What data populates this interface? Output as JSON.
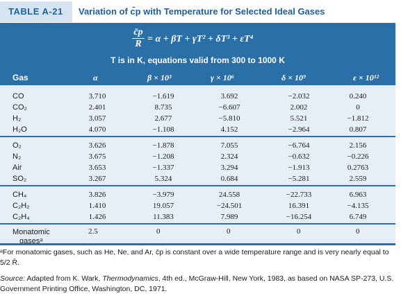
{
  "title": {
    "tag": "TABLE A-21",
    "text": "Variation of c̄p with Temperature for Selected Ideal Gases"
  },
  "header": {
    "equation_lhs_num": "c̄p",
    "equation_lhs_den": "R",
    "equation_rhs": "= α + βT + γT² + δT³ + εT⁴",
    "subtitle": "T is in K, equations valid from 300 to 1000 K",
    "columns": [
      "Gas",
      "α",
      "β × 10³",
      "γ × 10⁶",
      "δ × 10⁹",
      "ε × 10¹²"
    ]
  },
  "groups": [
    {
      "rows": [
        {
          "gas": "CO",
          "a": "3.710",
          "b": "−1.619",
          "g": "3.692",
          "d": "−2.032",
          "e": "0.240"
        },
        {
          "gas": "CO₂",
          "a": "2.401",
          "b": "8.735",
          "g": "−6.607",
          "d": "2.002",
          "e": "0"
        },
        {
          "gas": "H₂",
          "a": "3.057",
          "b": "2.677",
          "g": "−5.810",
          "d": "5.521",
          "e": "−1.812"
        },
        {
          "gas": "H₂O",
          "a": "4.070",
          "b": "−1.108",
          "g": "4.152",
          "d": "−2.964",
          "e": "0.807"
        }
      ]
    },
    {
      "rows": [
        {
          "gas": "O₂",
          "a": "3.626",
          "b": "−1.878",
          "g": "7.055",
          "d": "−6.764",
          "e": "2.156"
        },
        {
          "gas": "N₂",
          "a": "3.675",
          "b": "−1.208",
          "g": "2.324",
          "d": "−0.632",
          "e": "−0.226"
        },
        {
          "gas": "Air",
          "a": "3.653",
          "b": "−1.337",
          "g": "3.294",
          "d": "−1.913",
          "e": "0.2763"
        },
        {
          "gas": "SO₂",
          "a": "3.267",
          "b": "5.324",
          "g": "0.684",
          "d": "−5.281",
          "e": "2.559"
        }
      ]
    },
    {
      "rows": [
        {
          "gas": "CH₄",
          "a": "3.826",
          "b": "−3.979",
          "g": "24.558",
          "d": "−22.733",
          "e": "6.963"
        },
        {
          "gas": "C₂H₂",
          "a": "1.410",
          "b": "19.057",
          "g": "−24.501",
          "d": "16.391",
          "e": "−4.135"
        },
        {
          "gas": "C₂H₄",
          "a": "1.426",
          "b": "11.383",
          "g": "7.989",
          "d": "−16.254",
          "e": "6.749"
        }
      ]
    }
  ],
  "monatomic": {
    "label_line1": "Monatomic",
    "label_line2": "gasesᵃ",
    "a": "2.5",
    "b": "0",
    "g": "0",
    "d": "0",
    "e": "0"
  },
  "footnote": {
    "prefix": "ᵃ",
    "text": "For monatomic gases, such as He, Ne, and Ar, c̄p is constant over a wide temperature range and is very nearly equal to 5/2 R̄."
  },
  "source": {
    "label": "Source:",
    "text_before": " Adapted from K. Wark, ",
    "book": "Thermodynamics",
    "text_after": ", 4th ed., McGraw-Hill, New York, 1983, as based on NASA SP-273, U.S. Government Printing Office, Washington, DC, 1971."
  },
  "colors": {
    "header_bg": "#2b6fa8",
    "body_bg": "#e6eef7",
    "tag_bg": "#d6e4f2",
    "title_color": "#1f5f9a"
  }
}
